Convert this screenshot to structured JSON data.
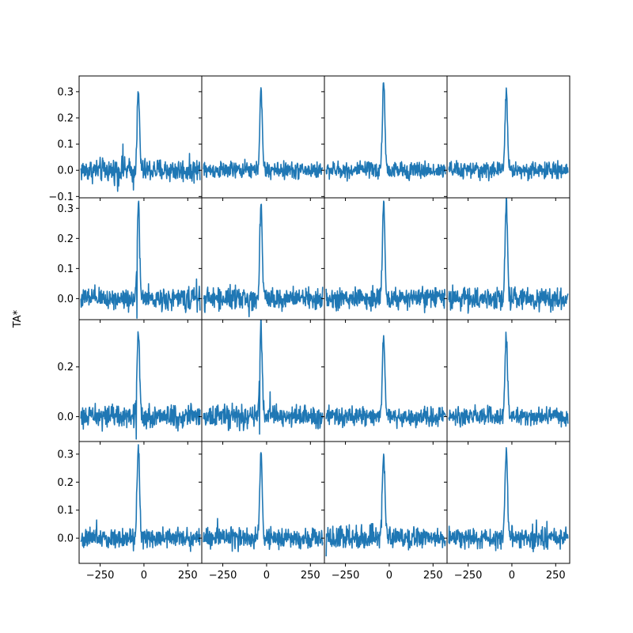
{
  "chart_data": {
    "type": "line",
    "layout": "4x4 grid of subplots sharing x axis",
    "ylabel": "TA*",
    "xlim": [
      -370,
      330
    ],
    "x_ticks": [
      -250,
      0,
      250
    ],
    "x_tick_labels": [
      "−250",
      "0",
      "250"
    ],
    "line_color": "#1f77b4",
    "x_sampling": {
      "start": -360,
      "end": 320,
      "step": 2
    },
    "row_ylims": [
      [
        -0.105,
        0.36
      ],
      [
        -0.07,
        0.335
      ],
      [
        -0.1,
        0.39
      ],
      [
        -0.09,
        0.345
      ]
    ],
    "row_yticks": [
      {
        "values": [
          -0.1,
          0.0,
          0.1,
          0.2,
          0.3
        ],
        "labels": [
          "−0.1",
          "0.0",
          "0.1",
          "0.2",
          "0.3"
        ]
      },
      {
        "values": [
          0.0,
          0.1,
          0.2,
          0.3
        ],
        "labels": [
          "0.0",
          "0.1",
          "0.2",
          "0.3"
        ]
      },
      {
        "values": [
          0.0,
          0.2
        ],
        "labels": [
          "0.0",
          "0.2"
        ]
      },
      {
        "values": [
          0.0,
          0.1,
          0.2,
          0.3
        ],
        "labels": [
          "0.0",
          "0.1",
          "0.2",
          "0.3"
        ]
      }
    ],
    "panels": [
      {
        "row": 0,
        "col": 0,
        "peak_x": -32,
        "peak": 0.29,
        "width": 7,
        "noise": 0.022,
        "spikes": [
          [
            -120,
            0.1
          ],
          [
            -150,
            -0.08
          ],
          [
            -60,
            -0.075
          ]
        ]
      },
      {
        "row": 0,
        "col": 1,
        "peak_x": -32,
        "peak": 0.3,
        "width": 7,
        "noise": 0.016,
        "spikes": []
      },
      {
        "row": 0,
        "col": 2,
        "peak_x": -32,
        "peak": 0.34,
        "width": 7,
        "noise": 0.016,
        "spikes": []
      },
      {
        "row": 0,
        "col": 3,
        "peak_x": -32,
        "peak": 0.31,
        "width": 7,
        "noise": 0.016,
        "spikes": []
      },
      {
        "row": 1,
        "col": 0,
        "peak_x": -32,
        "peak": 0.3,
        "width": 7,
        "noise": 0.018,
        "spikes": [
          [
            300,
            0.065
          ],
          [
            -40,
            -0.065
          ]
        ]
      },
      {
        "row": 1,
        "col": 1,
        "peak_x": -32,
        "peak": 0.32,
        "width": 7,
        "noise": 0.018,
        "spikes": [
          [
            -100,
            -0.06
          ]
        ]
      },
      {
        "row": 1,
        "col": 2,
        "peak_x": -32,
        "peak": 0.32,
        "width": 7,
        "noise": 0.018,
        "spikes": []
      },
      {
        "row": 1,
        "col": 3,
        "peak_x": -32,
        "peak": 0.32,
        "width": 7,
        "noise": 0.018,
        "spikes": []
      },
      {
        "row": 2,
        "col": 0,
        "peak_x": -32,
        "peak": 0.34,
        "width": 7,
        "noise": 0.022,
        "spikes": [
          [
            -45,
            -0.09
          ]
        ]
      },
      {
        "row": 2,
        "col": 1,
        "peak_x": -32,
        "peak": 0.36,
        "width": 7,
        "noise": 0.022,
        "spikes": [
          [
            20,
            0.1
          ],
          [
            -40,
            -0.07
          ]
        ]
      },
      {
        "row": 2,
        "col": 2,
        "peak_x": -32,
        "peak": 0.31,
        "width": 7,
        "noise": 0.018,
        "spikes": []
      },
      {
        "row": 2,
        "col": 3,
        "peak_x": -32,
        "peak": 0.32,
        "width": 7,
        "noise": 0.018,
        "spikes": []
      },
      {
        "row": 3,
        "col": 0,
        "peak_x": -32,
        "peak": 0.33,
        "width": 7,
        "noise": 0.018,
        "spikes": [
          [
            -270,
            0.065
          ]
        ]
      },
      {
        "row": 3,
        "col": 1,
        "peak_x": -32,
        "peak": 0.29,
        "width": 7,
        "noise": 0.018,
        "spikes": [
          [
            -280,
            0.07
          ]
        ]
      },
      {
        "row": 3,
        "col": 2,
        "peak_x": -32,
        "peak": 0.31,
        "width": 7,
        "noise": 0.02,
        "spikes": [
          [
            -360,
            -0.065
          ]
        ]
      },
      {
        "row": 3,
        "col": 3,
        "peak_x": -32,
        "peak": 0.32,
        "width": 7,
        "noise": 0.018,
        "spikes": [
          [
            140,
            0.065
          ],
          [
            200,
            0.06
          ]
        ]
      }
    ]
  }
}
